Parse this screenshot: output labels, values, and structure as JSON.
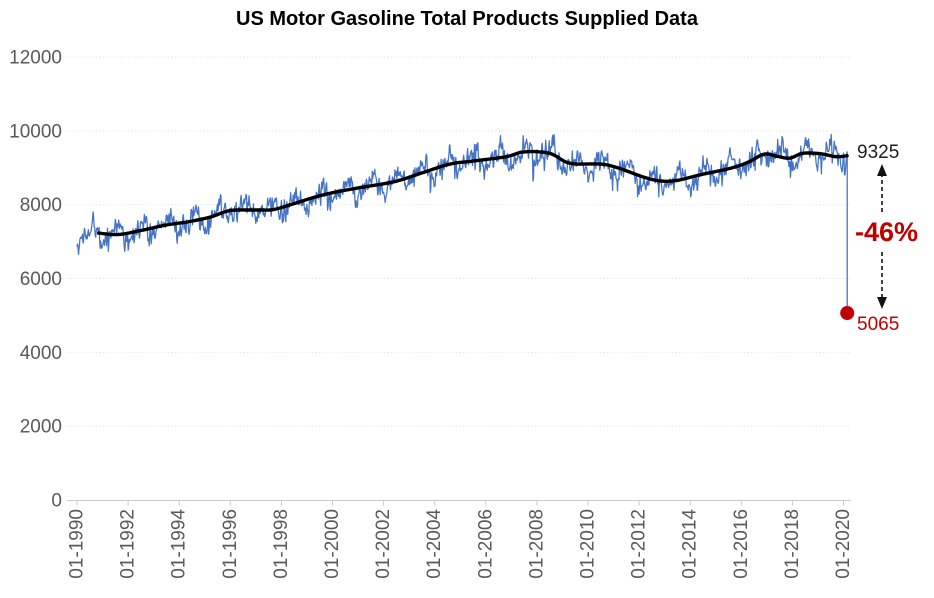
{
  "chart_data": {
    "type": "line",
    "title": "US Motor Gasoline Total Products Supplied Data",
    "xlabel": "",
    "ylabel": "",
    "x_tick_labels": [
      "01-1990",
      "01-1992",
      "01-1994",
      "01-1996",
      "01-1998",
      "01-2000",
      "01-2002",
      "01-2004",
      "01-2006",
      "01-2008",
      "01-2010",
      "01-2012",
      "01-2014",
      "01-2016",
      "01-2018",
      "01-2020"
    ],
    "y_ticks": [
      0,
      2000,
      4000,
      6000,
      8000,
      10000,
      12000
    ],
    "y_range": [
      0,
      12000
    ],
    "x_range_years": [
      1990.0,
      2020.45
    ],
    "grid": "horizontal-dotted",
    "legend": "none",
    "series": [
      {
        "name": "weekly-products-supplied",
        "color": "#4472C4",
        "style": "noisy-weekly",
        "points_per_year": 52,
        "start_year": 1990.0,
        "end_year": 2020.06,
        "lead_anchors": [
          [
            1990.0,
            7050
          ],
          [
            1990.45,
            7140
          ]
        ],
        "seasonal_amplitude": 235,
        "noise_amplitude": 290,
        "dip_probability": 0.022,
        "dip_extra": 500,
        "noise_seed": 20200417,
        "clamp": [
          5900,
          9950
        ],
        "final_weeks": [
          [
            2020.1,
            9150
          ],
          [
            2020.125,
            9380
          ],
          [
            2020.145,
            9430
          ],
          [
            2020.145,
            5065
          ]
        ]
      },
      {
        "name": "52-week-moving-average",
        "color": "#000000",
        "style": "smooth-trend",
        "anchors": [
          [
            1990.85,
            7230
          ],
          [
            1991.6,
            7190
          ],
          [
            1992.5,
            7300
          ],
          [
            1993.5,
            7450
          ],
          [
            1994.3,
            7530
          ],
          [
            1995.2,
            7660
          ],
          [
            1996.0,
            7840
          ],
          [
            1997.0,
            7855
          ],
          [
            1997.7,
            7870
          ],
          [
            1998.5,
            8030
          ],
          [
            1999.6,
            8260
          ],
          [
            2000.9,
            8440
          ],
          [
            2002.4,
            8620
          ],
          [
            2003.5,
            8860
          ],
          [
            2004.6,
            9100
          ],
          [
            2005.5,
            9180
          ],
          [
            2006.8,
            9300
          ],
          [
            2007.5,
            9430
          ],
          [
            2008.5,
            9390
          ],
          [
            2009.3,
            9120
          ],
          [
            2010.5,
            9100
          ],
          [
            2011.2,
            8990
          ],
          [
            2012.4,
            8700
          ],
          [
            2013.3,
            8640
          ],
          [
            2014.4,
            8810
          ],
          [
            2015.6,
            8990
          ],
          [
            2016.3,
            9160
          ],
          [
            2016.9,
            9370
          ],
          [
            2017.4,
            9310
          ],
          [
            2017.9,
            9260
          ],
          [
            2018.4,
            9390
          ],
          [
            2019.1,
            9380
          ],
          [
            2019.7,
            9300
          ],
          [
            2020.14,
            9325
          ]
        ]
      }
    ],
    "annotations": {
      "peak_value": "9325",
      "drop_pct": "-46%",
      "low_value": "5065",
      "peak_color": "#1f1f1f",
      "drop_color": "#C00000",
      "low_color": "#C00000"
    },
    "drop_marker": {
      "x_year": 2020.145,
      "value": 5065,
      "color": "#C00000"
    },
    "axis_style": {
      "text_color": "#595959",
      "line_color": "#C9C9C9",
      "grid_color": "#DEDEDE"
    }
  }
}
